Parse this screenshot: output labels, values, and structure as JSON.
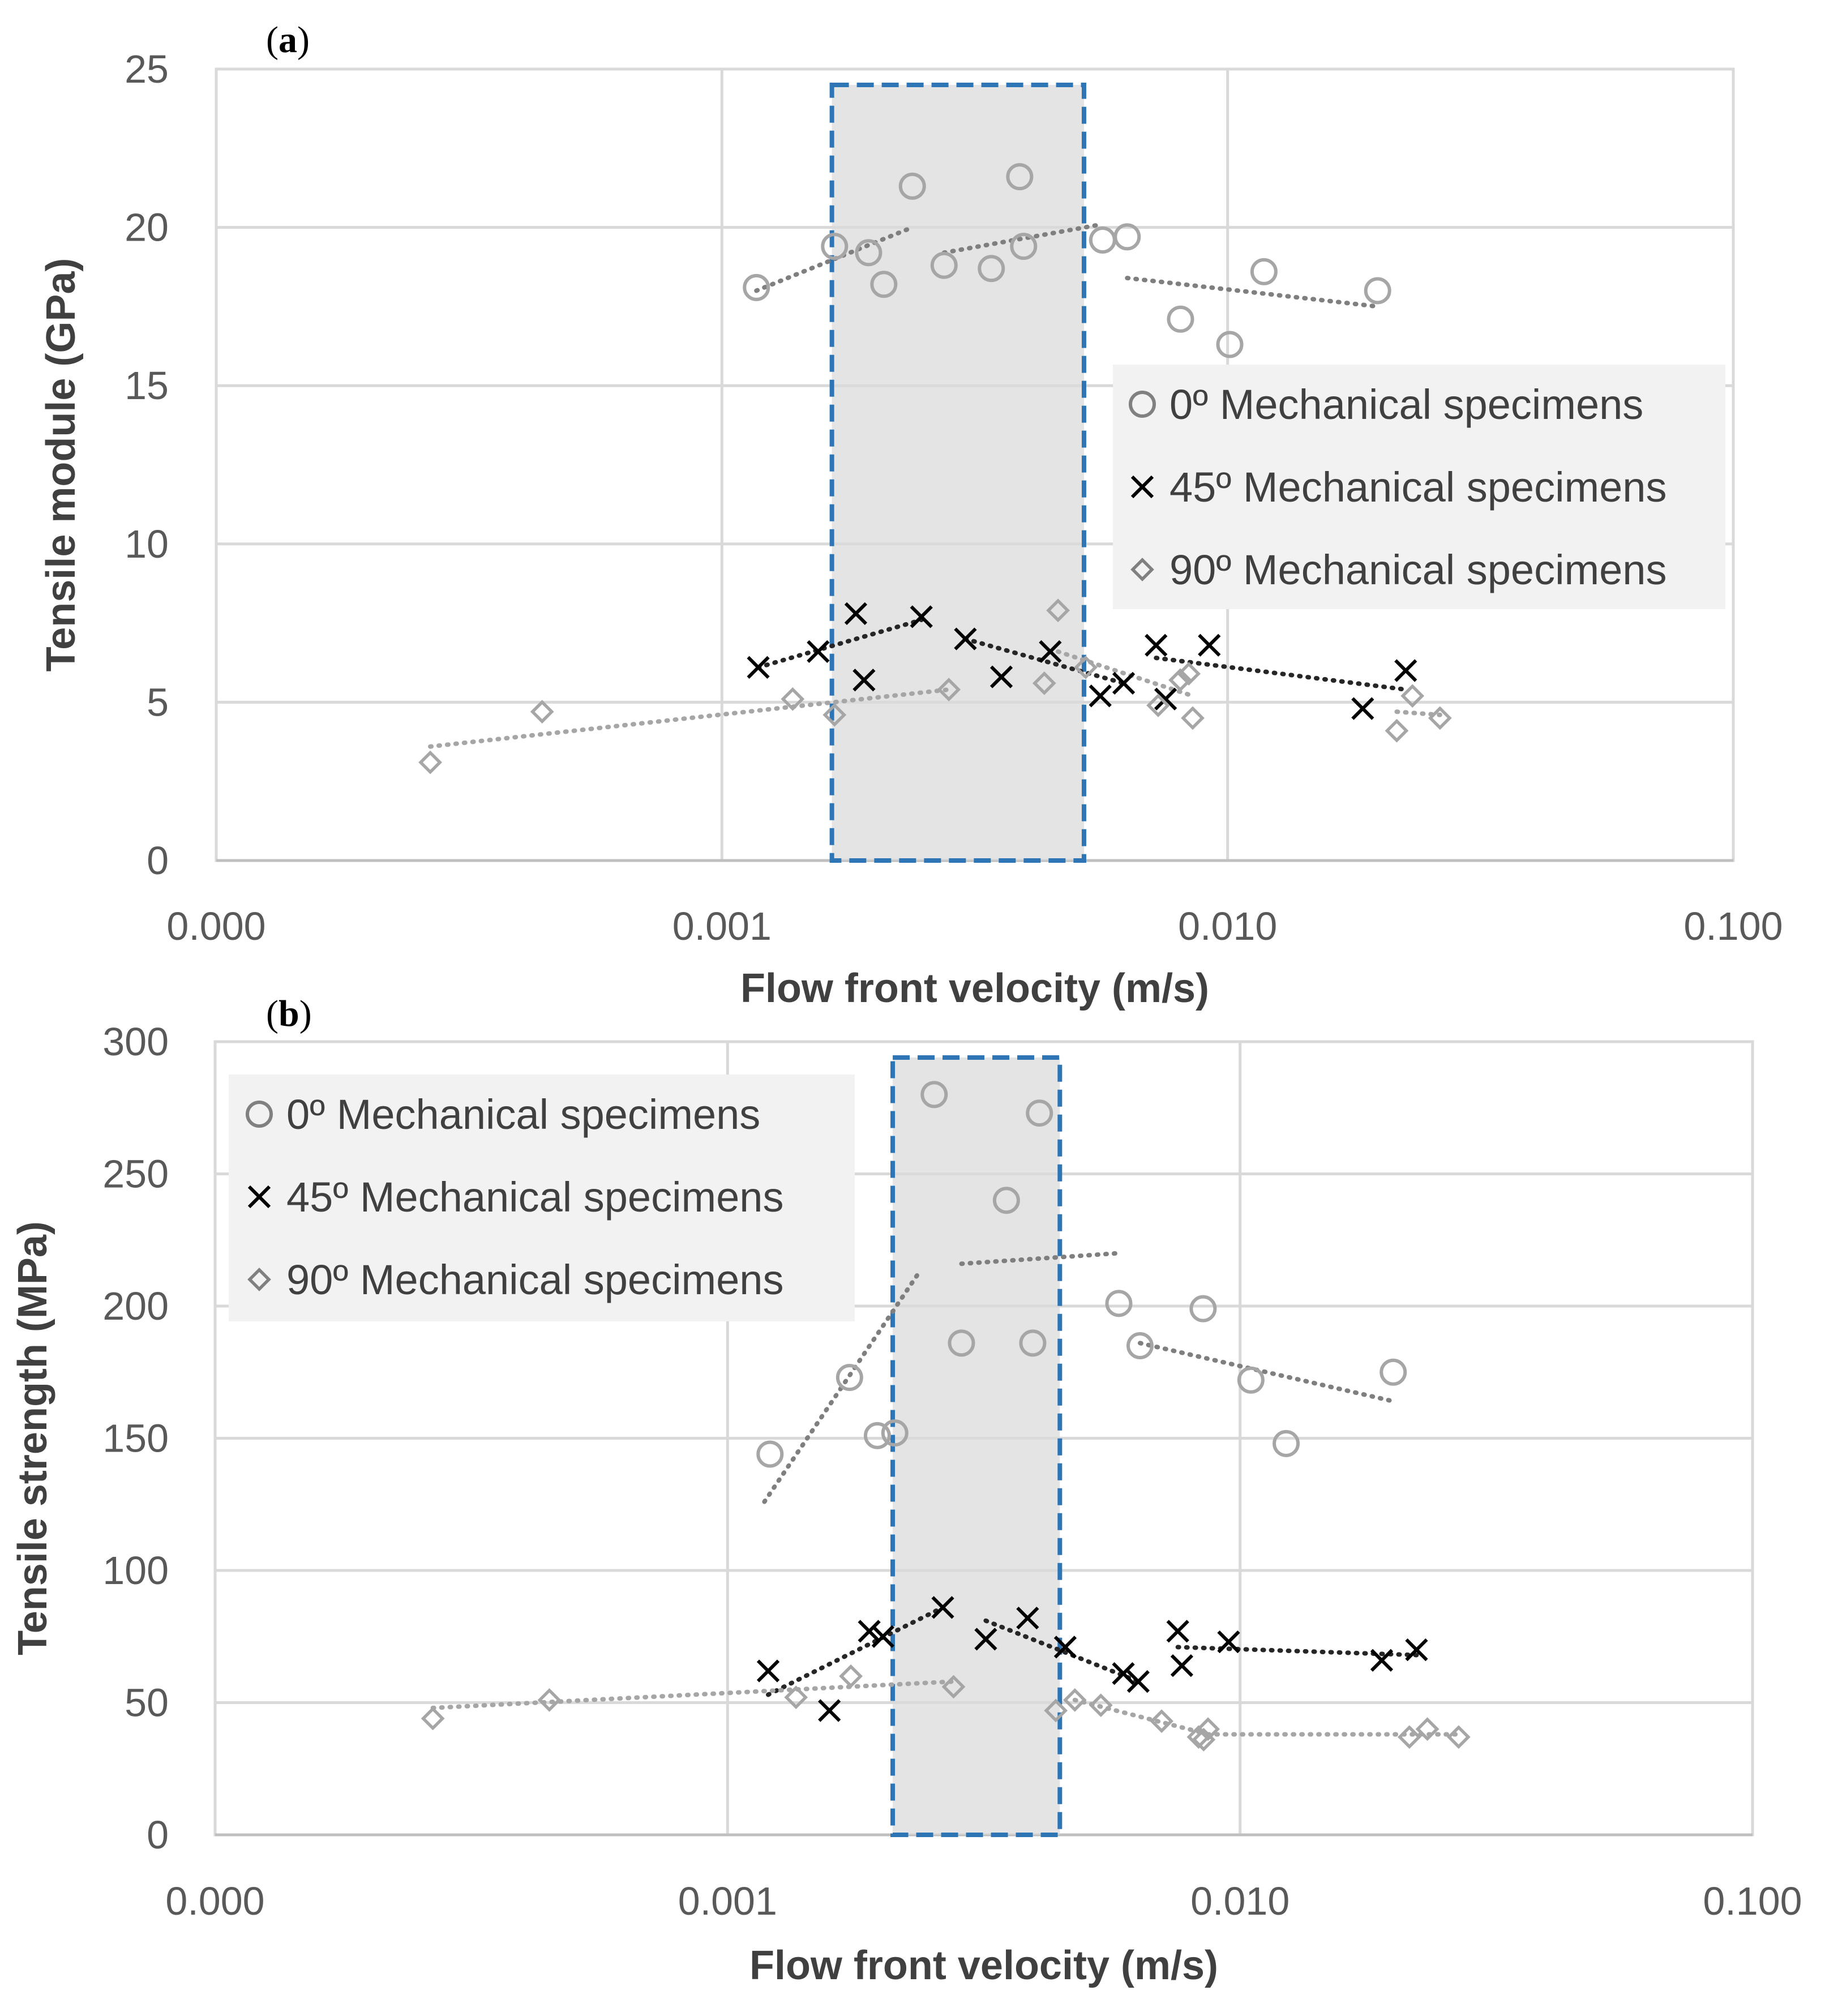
{
  "chart_data": [
    {
      "type": "scatter",
      "panel_label": "(a)",
      "xlabel": "Flow front velocity (m/s)",
      "ylabel": "Tensile module (GPa)",
      "x_scale": "log",
      "xlim": [
        0.0001,
        0.1
      ],
      "x_tick_labels": [
        "0.000",
        "0.001",
        "0.010",
        "0.100"
      ],
      "ylim": [
        0,
        25
      ],
      "y_tick_labels": [
        "0",
        "5",
        "10",
        "15",
        "20",
        "25"
      ],
      "grid": true,
      "legend_position": "right-middle",
      "highlight_region": {
        "x_range": [
          0.00165,
          0.0052
        ],
        "y_range": [
          0,
          24.5
        ]
      },
      "series": [
        {
          "name": "0º Mechanical specimens",
          "marker": "circle",
          "color": "#a6a6a6",
          "points": [
            [
              0.00117,
              18.1
            ],
            [
              0.00167,
              19.4
            ],
            [
              0.00195,
              19.2
            ],
            [
              0.00209,
              18.2
            ],
            [
              0.00238,
              21.3
            ],
            [
              0.00275,
              18.8
            ],
            [
              0.00341,
              18.7
            ],
            [
              0.00388,
              21.6
            ],
            [
              0.00395,
              19.4
            ],
            [
              0.00566,
              19.6
            ],
            [
              0.00633,
              19.7
            ],
            [
              0.00807,
              17.1
            ],
            [
              0.0101,
              16.3
            ],
            [
              0.0118,
              18.6
            ],
            [
              0.0198,
              18.0
            ]
          ],
          "trendlines": [
            [
              [
                0.00117,
                18.0
              ],
              [
                0.00238,
                20.0
              ]
            ],
            [
              [
                0.00275,
                19.2
              ],
              [
                0.00566,
                20.1
              ]
            ],
            [
              [
                0.00633,
                18.4
              ],
              [
                0.0198,
                17.5
              ]
            ]
          ]
        },
        {
          "name": "45º Mechanical specimens",
          "marker": "x",
          "color": "#000000",
          "points": [
            [
              0.00118,
              6.1
            ],
            [
              0.00155,
              6.6
            ],
            [
              0.00184,
              7.8
            ],
            [
              0.00191,
              5.7
            ],
            [
              0.00248,
              7.7
            ],
            [
              0.00303,
              7.0
            ],
            [
              0.00357,
              5.8
            ],
            [
              0.00446,
              6.6
            ],
            [
              0.0056,
              5.2
            ],
            [
              0.00623,
              5.6
            ],
            [
              0.00722,
              6.8
            ],
            [
              0.00754,
              5.1
            ],
            [
              0.0092,
              6.8
            ],
            [
              0.0185,
              4.8
            ],
            [
              0.0225,
              6.0
            ]
          ],
          "trendlines": [
            [
              [
                0.00118,
                6.1
              ],
              [
                0.00248,
                7.6
              ]
            ],
            [
              [
                0.00303,
                7.0
              ],
              [
                0.00623,
                5.6
              ]
            ],
            [
              [
                0.00722,
                6.4
              ],
              [
                0.0225,
                5.4
              ]
            ]
          ]
        },
        {
          "name": "90º Mechanical specimens",
          "marker": "diamond",
          "color": "#a6a6a6",
          "points": [
            [
              0.000265,
              3.1
            ],
            [
              0.000441,
              4.7
            ],
            [
              0.00138,
              5.1
            ],
            [
              0.00167,
              4.6
            ],
            [
              0.00281,
              5.4
            ],
            [
              0.00434,
              5.6
            ],
            [
              0.00462,
              7.9
            ],
            [
              0.00524,
              6.1
            ],
            [
              0.00729,
              4.9
            ],
            [
              0.00806,
              5.7
            ],
            [
              0.00838,
              5.9
            ],
            [
              0.00853,
              4.5
            ],
            [
              0.0216,
              4.1
            ],
            [
              0.0232,
              5.2
            ],
            [
              0.0263,
              4.5
            ]
          ],
          "trendlines": [
            [
              [
                0.000265,
                3.6
              ],
              [
                0.00281,
                5.4
              ]
            ],
            [
              [
                0.00462,
                6.6
              ],
              [
                0.00853,
                5.2
              ]
            ],
            [
              [
                0.0216,
                4.7
              ],
              [
                0.0263,
                4.6
              ]
            ]
          ]
        }
      ]
    },
    {
      "type": "scatter",
      "panel_label": "(b)",
      "xlabel": "Flow front velocity (m/s)",
      "ylabel": "Tensile strength (MPa)",
      "x_scale": "log",
      "xlim": [
        0.0001,
        0.1
      ],
      "x_tick_labels": [
        "0.000",
        "0.001",
        "0.010",
        "0.100"
      ],
      "ylim": [
        0,
        300
      ],
      "y_tick_labels": [
        "0",
        "50",
        "100",
        "150",
        "200",
        "250",
        "300"
      ],
      "grid": true,
      "legend_position": "top-left",
      "highlight_region": {
        "x_range": [
          0.0021,
          0.00445
        ],
        "y_range": [
          0,
          294
        ]
      },
      "series": [
        {
          "name": "0º Mechanical specimens",
          "marker": "circle",
          "color": "#a6a6a6",
          "points": [
            [
              0.00121,
              144
            ],
            [
              0.00173,
              173
            ],
            [
              0.00196,
              151
            ],
            [
              0.00212,
              152
            ],
            [
              0.00253,
              280
            ],
            [
              0.00286,
              186
            ],
            [
              0.0035,
              240
            ],
            [
              0.00394,
              186
            ],
            [
              0.00406,
              273
            ],
            [
              0.0058,
              201
            ],
            [
              0.00638,
              185
            ],
            [
              0.00847,
              199
            ],
            [
              0.0105,
              172
            ],
            [
              0.0123,
              148
            ],
            [
              0.0199,
              175
            ]
          ],
          "trendlines": [
            [
              [
                0.00118,
                126
              ],
              [
                0.00235,
                212
              ]
            ],
            [
              [
                0.00286,
                216
              ],
              [
                0.0058,
                220
              ]
            ],
            [
              [
                0.00638,
                186
              ],
              [
                0.0199,
                164
              ]
            ]
          ]
        },
        {
          "name": "45º Mechanical specimens",
          "marker": "x",
          "color": "#000000",
          "points": [
            [
              0.0012,
              62
            ],
            [
              0.00158,
              47
            ],
            [
              0.00189,
              77
            ],
            [
              0.00201,
              75
            ],
            [
              0.00263,
              86
            ],
            [
              0.00319,
              74
            ],
            [
              0.00385,
              82
            ],
            [
              0.00456,
              71
            ],
            [
              0.00592,
              61
            ],
            [
              0.00633,
              58
            ],
            [
              0.00756,
              77
            ],
            [
              0.0077,
              64
            ],
            [
              0.0095,
              73
            ],
            [
              0.0189,
              66
            ],
            [
              0.0221,
              70
            ]
          ],
          "trendlines": [
            [
              [
                0.0012,
                53
              ],
              [
                0.00263,
                86
              ]
            ],
            [
              [
                0.00319,
                81
              ],
              [
                0.00633,
                58
              ]
            ],
            [
              [
                0.00756,
                71
              ],
              [
                0.0221,
                68
              ]
            ]
          ]
        },
        {
          "name": "90º Mechanical specimens",
          "marker": "diamond",
          "color": "#a6a6a6",
          "points": [
            [
              0.000266,
              44
            ],
            [
              0.000449,
              51
            ],
            [
              0.00136,
              52
            ],
            [
              0.00174,
              60
            ],
            [
              0.00276,
              56
            ],
            [
              0.00437,
              47
            ],
            [
              0.00476,
              51
            ],
            [
              0.00535,
              49
            ],
            [
              0.00703,
              43
            ],
            [
              0.0083,
              37
            ],
            [
              0.00849,
              36
            ],
            [
              0.00866,
              40
            ],
            [
              0.0214,
              37
            ],
            [
              0.0232,
              40
            ],
            [
              0.0267,
              37
            ]
          ],
          "trendlines": [
            [
              [
                0.000266,
                48
              ],
              [
                0.00276,
                58
              ]
            ],
            [
              [
                0.00476,
                51
              ],
              [
                0.0083,
                39
              ]
            ],
            [
              [
                0.00866,
                38
              ],
              [
                0.0267,
                38
              ]
            ]
          ]
        }
      ]
    }
  ]
}
